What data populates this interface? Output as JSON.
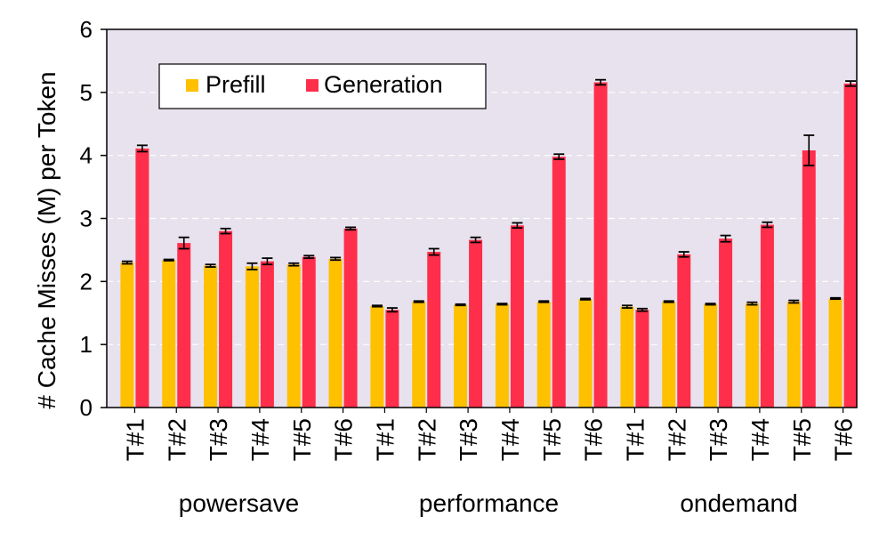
{
  "chart_data": {
    "type": "bar",
    "title": "",
    "xlabel": "",
    "ylabel": "# Cache Misses (M) per Token",
    "ylim": [
      0,
      6
    ],
    "yticks": [
      "0",
      "1",
      "2",
      "3",
      "4",
      "5",
      "6"
    ],
    "grid": true,
    "legend_position": "top-left",
    "groups": [
      {
        "name": "powersave",
        "categories": [
          "T#1",
          "T#2",
          "T#3",
          "T#4",
          "T#5",
          "T#6"
        ]
      },
      {
        "name": "performance",
        "categories": [
          "T#1",
          "T#2",
          "T#3",
          "T#4",
          "T#5",
          "T#6"
        ]
      },
      {
        "name": "ondemand",
        "categories": [
          "T#1",
          "T#2",
          "T#3",
          "T#4",
          "T#5",
          "T#6"
        ]
      }
    ],
    "series": [
      {
        "name": "Prefill",
        "color": "#FFC000",
        "values": [
          2.3,
          2.34,
          2.25,
          2.24,
          2.27,
          2.36,
          1.61,
          1.68,
          1.63,
          1.64,
          1.68,
          1.72,
          1.6,
          1.68,
          1.64,
          1.65,
          1.68,
          1.73
        ],
        "errors": [
          0.02,
          0.01,
          0.02,
          0.05,
          0.02,
          0.02,
          0.01,
          0.01,
          0.01,
          0.01,
          0.01,
          0.01,
          0.02,
          0.01,
          0.01,
          0.02,
          0.02,
          0.01
        ]
      },
      {
        "name": "Generation",
        "color": "#FF2E4A",
        "values": [
          4.11,
          2.61,
          2.8,
          2.32,
          2.39,
          2.84,
          1.55,
          2.47,
          2.66,
          2.89,
          3.98,
          5.16,
          1.55,
          2.43,
          2.68,
          2.9,
          4.08,
          5.14
        ],
        "errors": [
          0.05,
          0.09,
          0.04,
          0.05,
          0.02,
          0.02,
          0.03,
          0.05,
          0.04,
          0.04,
          0.04,
          0.04,
          0.02,
          0.04,
          0.05,
          0.04,
          0.24,
          0.04
        ]
      }
    ]
  }
}
